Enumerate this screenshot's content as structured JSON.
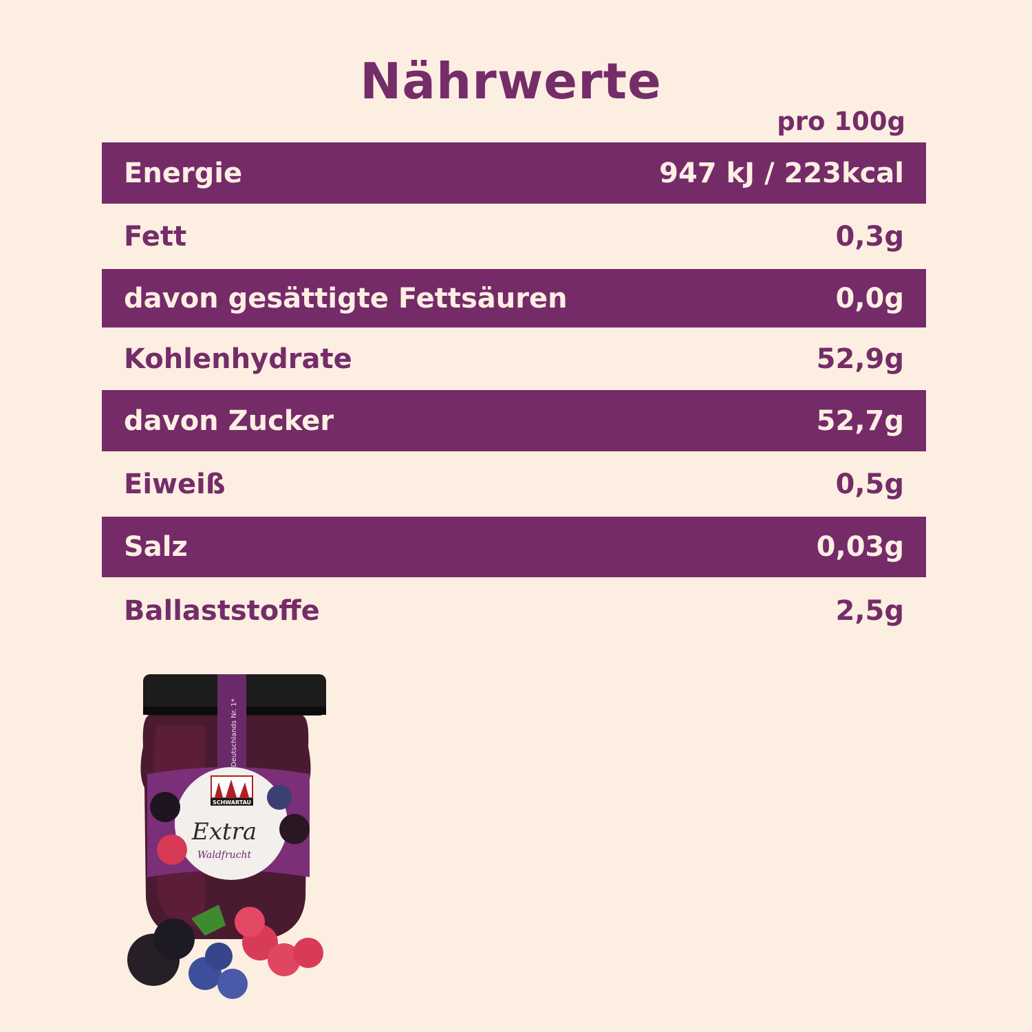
{
  "title": "Nährwerte",
  "per_unit": "pro 100g",
  "rows": [
    {
      "label": "Energie",
      "value": "947 kJ / 223kcal",
      "highlight": true
    },
    {
      "label": "Fett",
      "value": "0,3g",
      "highlight": false
    },
    {
      "label": "davon gesättigte Fettsäuren",
      "value": "0,0g",
      "highlight": true
    },
    {
      "label": "Kohlenhydrate",
      "value": "52,9g",
      "highlight": false
    },
    {
      "label": "davon Zucker",
      "value": "52,7g",
      "highlight": true
    },
    {
      "label": "Eiweiß",
      "value": "0,5g",
      "highlight": false
    },
    {
      "label": "Salz",
      "value": "0,03g",
      "highlight": true
    },
    {
      "label": "Ballaststoffe",
      "value": "2,5g",
      "highlight": false
    }
  ],
  "product": {
    "brand": "SCHWARTAU",
    "line": "Extra",
    "variety": "Waldfrucht",
    "claim": "Deutschlands Nr. 1*"
  },
  "colors": {
    "accent": "#742b68",
    "background": "#fdeee2"
  }
}
